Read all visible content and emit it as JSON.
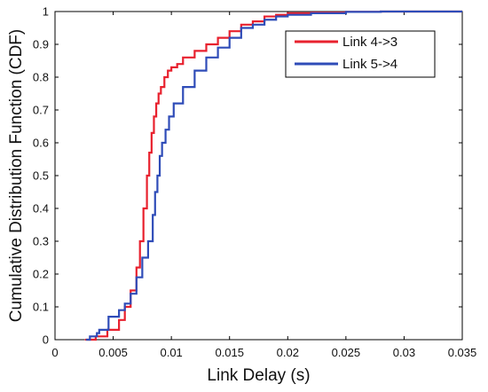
{
  "chart_data": {
    "type": "line",
    "title": "",
    "xlabel": "Link Delay (s)",
    "ylabel": "Cumulative Distribution Function (CDF)",
    "xlim": [
      0,
      0.035
    ],
    "ylim": [
      0,
      1
    ],
    "x_ticks": [
      "0",
      "0.005",
      "0.01",
      "0.015",
      "0.02",
      "0.025",
      "0.03",
      "0.035"
    ],
    "y_ticks": [
      "0",
      "0.1",
      "0.2",
      "0.3",
      "0.4",
      "0.5",
      "0.6",
      "0.7",
      "0.8",
      "0.9",
      "1"
    ],
    "grid": false,
    "legend_position": "top-right",
    "series": [
      {
        "name": "Link 4->3",
        "color": "#e8212e",
        "x": [
          0.0026,
          0.0035,
          0.0045,
          0.0055,
          0.006,
          0.0065,
          0.007,
          0.0073,
          0.0076,
          0.0079,
          0.0081,
          0.0083,
          0.0085,
          0.0087,
          0.0089,
          0.0091,
          0.0094,
          0.0097,
          0.01,
          0.0105,
          0.011,
          0.012,
          0.013,
          0.014,
          0.015,
          0.016,
          0.017,
          0.018,
          0.019,
          0.02,
          0.022,
          0.025,
          0.028,
          0.0328
        ],
        "y": [
          0.0,
          0.01,
          0.03,
          0.06,
          0.1,
          0.15,
          0.22,
          0.3,
          0.4,
          0.5,
          0.57,
          0.63,
          0.68,
          0.72,
          0.75,
          0.77,
          0.8,
          0.82,
          0.83,
          0.84,
          0.86,
          0.88,
          0.9,
          0.92,
          0.94,
          0.96,
          0.97,
          0.985,
          0.99,
          0.995,
          0.997,
          0.999,
          1.0,
          1.0
        ]
      },
      {
        "name": "Link 5->4",
        "color": "#2f4cb8",
        "x": [
          0.0027,
          0.003,
          0.0033,
          0.0036,
          0.0038,
          0.0044,
          0.0046,
          0.0048,
          0.0052,
          0.0055,
          0.006,
          0.0065,
          0.007,
          0.0075,
          0.008,
          0.0084,
          0.0086,
          0.0088,
          0.009,
          0.0092,
          0.0095,
          0.0098,
          0.0102,
          0.011,
          0.012,
          0.013,
          0.014,
          0.015,
          0.016,
          0.017,
          0.018,
          0.019,
          0.02,
          0.022,
          0.025,
          0.028
        ],
        "y": [
          0.0,
          0.01,
          0.01,
          0.02,
          0.03,
          0.03,
          0.07,
          0.07,
          0.07,
          0.09,
          0.11,
          0.14,
          0.19,
          0.25,
          0.3,
          0.38,
          0.45,
          0.5,
          0.56,
          0.6,
          0.64,
          0.68,
          0.72,
          0.77,
          0.82,
          0.86,
          0.89,
          0.92,
          0.95,
          0.96,
          0.975,
          0.985,
          0.99,
          0.995,
          0.999,
          1.0
        ]
      }
    ]
  }
}
